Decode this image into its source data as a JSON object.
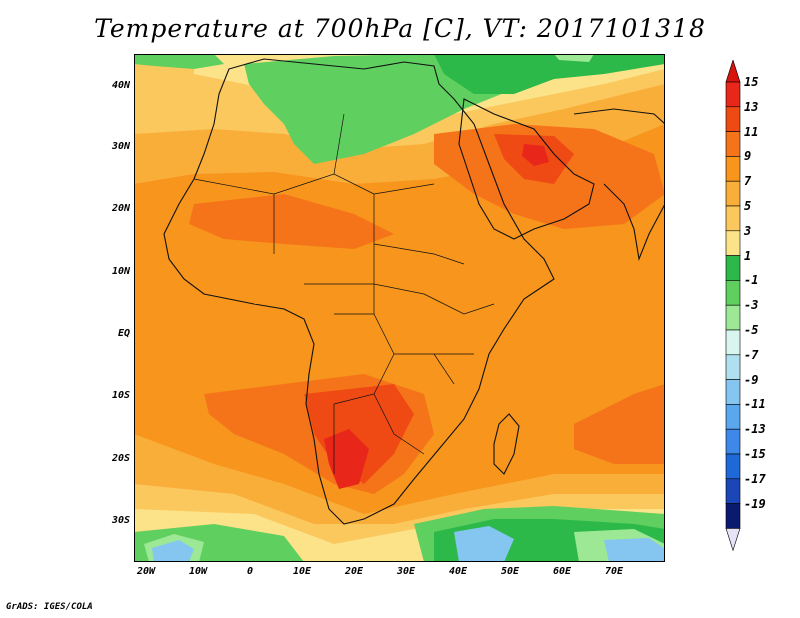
{
  "title": "Temperature at 700hPa [C], VT: 2017101318",
  "credit": "GrADS: IGES/COLA",
  "map": {
    "lat_labels": [
      "40N",
      "30N",
      "20N",
      "10N",
      "EQ",
      "10S",
      "20S",
      "30S"
    ],
    "lon_labels": [
      "20W",
      "10W",
      "0",
      "10E",
      "20E",
      "30E",
      "40E",
      "50E",
      "60E",
      "70E"
    ],
    "extent": {
      "lon": [
        -22,
        80
      ],
      "lat": [
        -36,
        45
      ]
    }
  },
  "colorbar": {
    "labels": [
      "15",
      "13",
      "11",
      "9",
      "7",
      "5",
      "3",
      "1",
      "-1",
      "-3",
      "-5",
      "-7",
      "-9",
      "-11",
      "-13",
      "-15",
      "-17",
      "-19"
    ],
    "colors": [
      "#e8261a",
      "#f04a14",
      "#f5741a",
      "#f7951c",
      "#f9ae3a",
      "#fbc85e",
      "#fce38a",
      "#2db84a",
      "#5fcf5f",
      "#9ce895",
      "#d9f5f0",
      "#aee0f0",
      "#84c6ef",
      "#5aa7ee",
      "#3d88e8",
      "#1f68d8",
      "#1a46b8",
      "#0a1a6e"
    ]
  }
}
